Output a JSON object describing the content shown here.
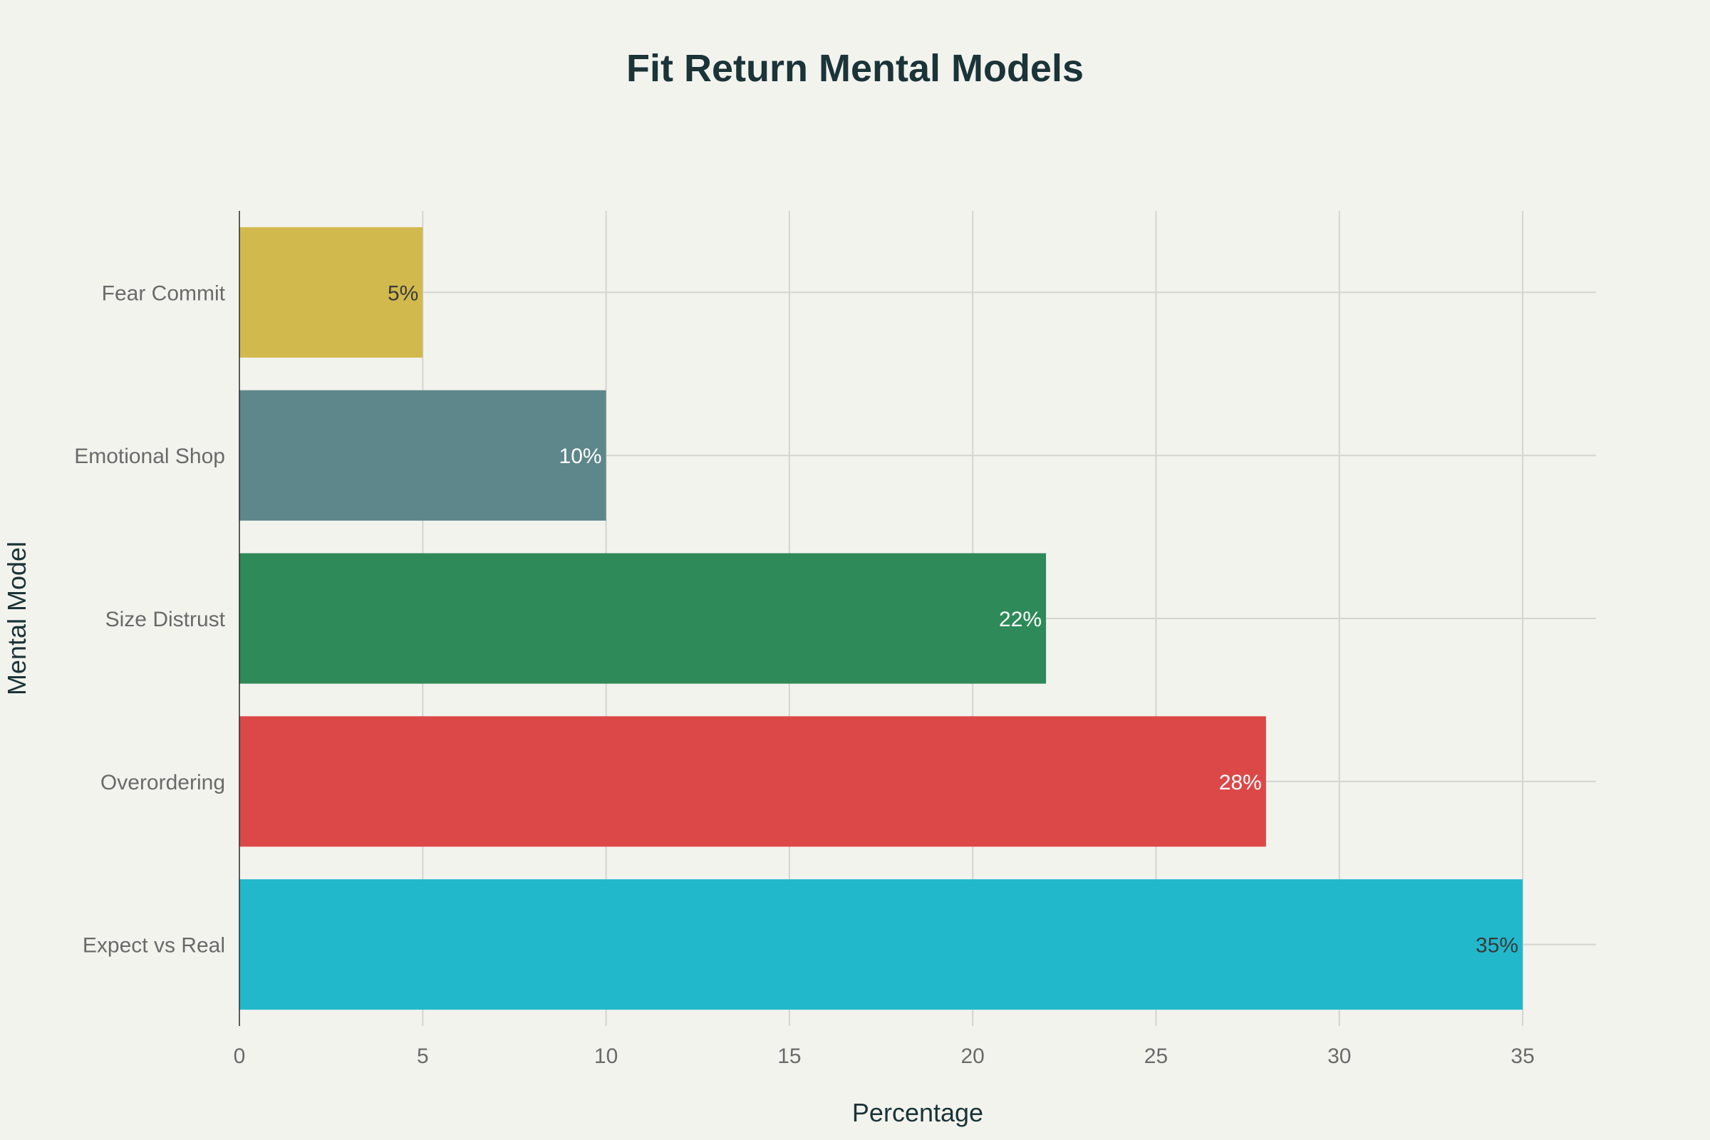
{
  "chart_data": {
    "type": "bar",
    "orientation": "horizontal",
    "title": "Fit Return Mental Models",
    "xlabel": "Percentage",
    "ylabel": "Mental Model",
    "categories": [
      "Expect vs Real",
      "Overordering",
      "Size Distrust",
      "Emotional Shop",
      "Fear Commit"
    ],
    "values": [
      35,
      28,
      22,
      10,
      5
    ],
    "data_labels": [
      "35%",
      "28%",
      "22%",
      "10%",
      "5%"
    ],
    "colors": [
      "#21b8cc",
      "#dc4848",
      "#2e8a58",
      "#5d878a",
      "#d2b94d"
    ],
    "label_colors": [
      "#3a3a3a",
      "#ffffff",
      "#ffffff",
      "#ffffff",
      "#3a3a3a"
    ],
    "xlim": [
      0,
      37
    ],
    "xticks": [
      0,
      5,
      10,
      15,
      20,
      25,
      30,
      35
    ],
    "grid": true,
    "legend": "none"
  }
}
